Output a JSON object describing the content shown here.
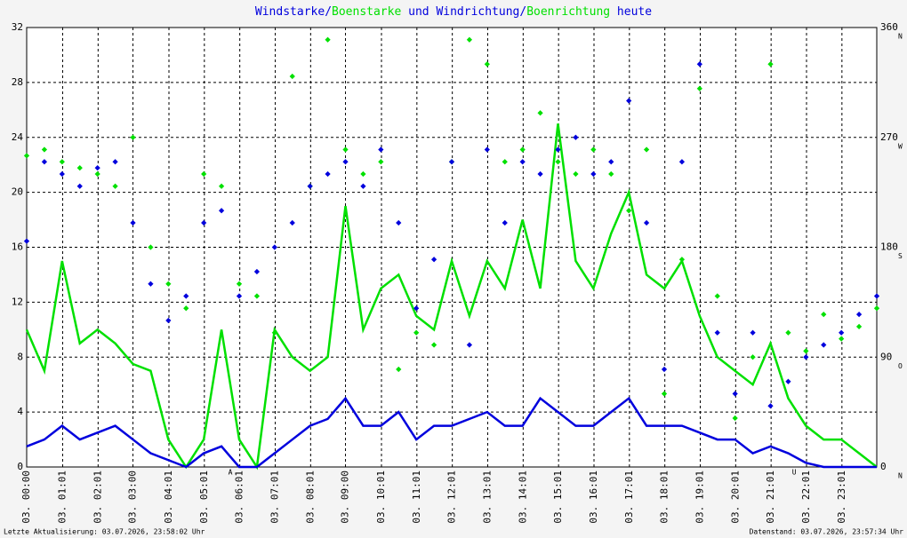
{
  "chart_data": {
    "type": "line",
    "title_parts": [
      "Windstarke",
      "/",
      "Boenstarke",
      " und ",
      "Windrichtung",
      "/",
      "Boenrichtung",
      " heute"
    ],
    "footer_left": "Letzte Aktualisierung: 03.07.2026, 23:58:02 Uhr",
    "footer_right": "Datenstand: 03.07.2026, 23:57:34 Uhr",
    "xlim": [
      0,
      24
    ],
    "xticks": [
      {
        "value": 0,
        "label": "03. 00:00"
      },
      {
        "value": 1.0167,
        "label": "03. 01:01"
      },
      {
        "value": 2.0167,
        "label": "03. 02:01"
      },
      {
        "value": 3,
        "label": "03. 03:00"
      },
      {
        "value": 4.0167,
        "label": "03. 04:01"
      },
      {
        "value": 5.0167,
        "label": "03. 05:01"
      },
      {
        "value": 6.0167,
        "label": "03. 06:01"
      },
      {
        "value": 7.0167,
        "label": "03. 07:01"
      },
      {
        "value": 8.0167,
        "label": "03. 08:01"
      },
      {
        "value": 9,
        "label": "03. 09:00"
      },
      {
        "value": 10.0167,
        "label": "03. 10:01"
      },
      {
        "value": 11.0167,
        "label": "03. 11:01"
      },
      {
        "value": 12.0167,
        "label": "03. 12:01"
      },
      {
        "value": 13.0167,
        "label": "03. 13:01"
      },
      {
        "value": 14.0167,
        "label": "03. 14:01"
      },
      {
        "value": 15.0167,
        "label": "03. 15:01"
      },
      {
        "value": 16.0167,
        "label": "03. 16:01"
      },
      {
        "value": 17.0167,
        "label": "03. 17:01"
      },
      {
        "value": 18.0167,
        "label": "03. 18:01"
      },
      {
        "value": 19.0167,
        "label": "03. 19:01"
      },
      {
        "value": 20.0167,
        "label": "03. 20:01"
      },
      {
        "value": 21.0167,
        "label": "03. 21:01"
      },
      {
        "value": 22.0167,
        "label": "03. 22:01"
      },
      {
        "value": 23.0167,
        "label": "03. 23:01"
      }
    ],
    "ylim": [
      0,
      32
    ],
    "yticks": [
      0,
      4,
      8,
      12,
      16,
      20,
      24,
      28,
      32
    ],
    "y2lim": [
      0,
      360
    ],
    "y2ticks": [
      0,
      90,
      180,
      270,
      360
    ],
    "y2tick_directions": [
      "N",
      "O",
      "S",
      "W",
      "N"
    ],
    "grid": true,
    "annotations": [
      {
        "label": "A",
        "x": 5.75
      },
      {
        "label": "U",
        "x": 21.67
      }
    ],
    "x": [
      0,
      0.5,
      1,
      1.5,
      2,
      2.5,
      3,
      3.5,
      4,
      4.5,
      5,
      5.5,
      6,
      6.5,
      7,
      7.5,
      8,
      8.5,
      9,
      9.5,
      10,
      10.5,
      11,
      11.5,
      12,
      12.5,
      13,
      13.5,
      14,
      14.5,
      15,
      15.5,
      16,
      16.5,
      17,
      17.5,
      18,
      18.5,
      19,
      19.5,
      20,
      20.5,
      21,
      21.5,
      22,
      22.5,
      23,
      23.5,
      24
    ],
    "series": [
      {
        "name": "Boenstarke",
        "kind": "line",
        "color": "#00e000",
        "values": [
          10,
          7,
          15,
          9,
          10,
          9,
          7.5,
          7,
          2,
          0,
          2,
          10,
          2,
          0,
          10,
          8,
          7,
          8,
          19,
          10,
          13,
          14,
          11,
          10,
          15,
          11,
          15,
          13,
          18,
          13,
          25,
          15,
          13,
          17,
          20,
          14,
          13,
          15,
          11,
          8,
          7,
          6,
          9,
          5,
          3,
          2,
          2,
          1,
          0
        ]
      },
      {
        "name": "Windstarke",
        "kind": "line",
        "color": "#0000dd",
        "values": [
          1.5,
          2,
          3,
          2,
          2.5,
          3,
          2,
          1,
          0.5,
          0,
          1,
          1.5,
          0,
          0,
          1,
          2,
          3,
          3.5,
          5,
          3,
          3,
          4,
          2,
          3,
          3,
          3.5,
          4,
          3,
          3,
          5,
          4,
          3,
          3,
          4,
          5,
          3,
          3,
          3,
          2.5,
          2,
          2,
          1,
          1.5,
          1,
          0.3,
          0,
          0,
          0,
          0
        ]
      },
      {
        "name": "Boenrichtung",
        "kind": "scatter",
        "axis": "y2",
        "color": "#00e000",
        "values": [
          255,
          260,
          250,
          245,
          240,
          230,
          270,
          180,
          150,
          130,
          240,
          230,
          150,
          140,
          110,
          320,
          230,
          350,
          260,
          240,
          250,
          80,
          110,
          100,
          250,
          350,
          330,
          250,
          260,
          290,
          250,
          240,
          260,
          240,
          210,
          260,
          60,
          170,
          310,
          140,
          40,
          90,
          330,
          110,
          95,
          125,
          105,
          115,
          130
        ]
      },
      {
        "name": "Windrichtung",
        "kind": "scatter",
        "axis": "y2",
        "color": "#0000dd",
        "values": [
          185,
          250,
          240,
          230,
          245,
          250,
          200,
          150,
          120,
          140,
          200,
          210,
          140,
          160,
          180,
          200,
          230,
          240,
          250,
          230,
          260,
          200,
          130,
          170,
          250,
          100,
          260,
          200,
          250,
          240,
          260,
          270,
          240,
          250,
          300,
          200,
          80,
          250,
          330,
          110,
          60,
          110,
          50,
          70,
          90,
          100,
          110,
          125,
          140
        ]
      }
    ]
  }
}
